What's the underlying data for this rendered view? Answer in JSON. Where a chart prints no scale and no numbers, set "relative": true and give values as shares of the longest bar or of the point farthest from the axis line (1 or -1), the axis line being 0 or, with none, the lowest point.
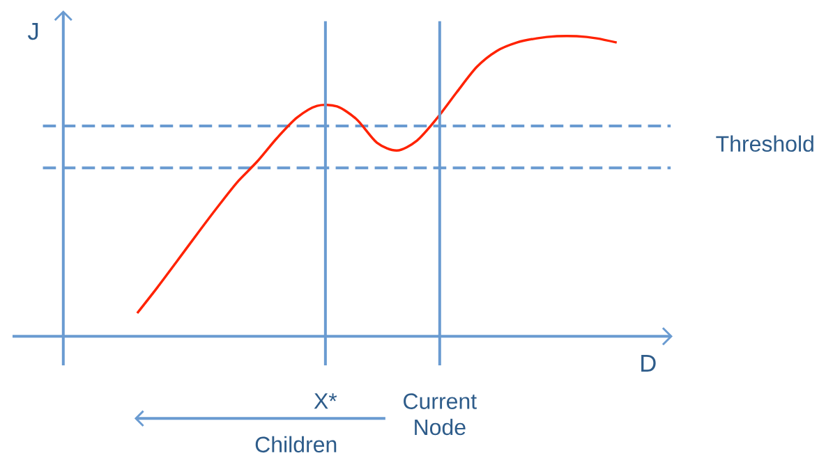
{
  "chart_data": {
    "type": "line",
    "relative": true,
    "xlabel": "D",
    "ylabel": "J",
    "categories": [
      null,
      null,
      null,
      null,
      null,
      null,
      null,
      null,
      null,
      null,
      null,
      null,
      null,
      null,
      null,
      null,
      null,
      null,
      null,
      null,
      null,
      null,
      null,
      null,
      null
    ],
    "series": [
      {
        "color": "#ff2200",
        "values": [
          0.077,
          0.162,
          0.251,
          0.341,
          0.429,
          0.513,
          0.582,
          0.661,
          0.729,
          0.768,
          0.766,
          0.722,
          0.645,
          0.619,
          0.652,
          0.726,
          0.814,
          0.898,
          0.951,
          0.979,
          0.993,
          1.0,
          1.0,
          0.993,
          0.979
        ]
      }
    ],
    "ref_lines": [
      {
        "axis": "y",
        "value": 0.701,
        "label": "Threshold",
        "color": "#6a9bd1",
        "line_style": "dashed"
      },
      {
        "axis": "y",
        "value": 0.561,
        "color": "#6a9bd1",
        "line_style": "dashed"
      }
    ],
    "annotations": [
      "X*",
      "Current Node",
      "Children"
    ]
  }
}
